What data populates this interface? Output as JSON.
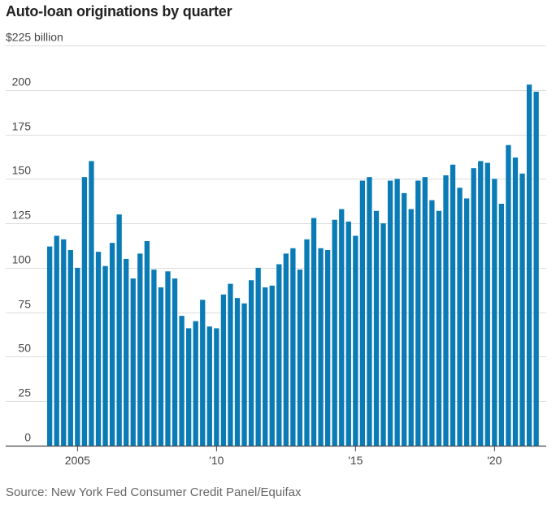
{
  "chart_data": {
    "type": "bar",
    "title": "Auto-loan originations by quarter",
    "ylabel_prefix": "$225 billion",
    "ylim": [
      0,
      225
    ],
    "yticks": [
      0,
      25,
      50,
      75,
      100,
      125,
      150,
      175,
      200
    ],
    "xticks": [
      {
        "label": "2005",
        "index": 4
      },
      {
        "label": "'10",
        "index": 24
      },
      {
        "label": "'15",
        "index": 44
      },
      {
        "label": "'20",
        "index": 64
      }
    ],
    "start": "2004 Q1",
    "color": "#0a7bb5",
    "values": [
      112,
      118,
      116,
      110,
      100,
      151,
      160,
      109,
      101,
      114,
      130,
      105,
      94,
      108,
      115,
      99,
      89,
      98,
      94,
      73,
      66,
      70,
      82,
      67,
      66,
      85,
      91,
      83,
      80,
      93,
      100,
      89,
      90,
      102,
      108,
      111,
      99,
      116,
      128,
      111,
      110,
      127,
      133,
      126,
      118,
      149,
      151,
      132,
      125,
      149,
      150,
      142,
      133,
      149,
      151,
      138,
      132,
      152,
      158,
      145,
      139,
      156,
      160,
      159,
      150,
      136,
      169,
      162,
      153,
      203,
      199
    ]
  },
  "source": "Source: New York Fed Consumer Credit Panel/Equifax"
}
